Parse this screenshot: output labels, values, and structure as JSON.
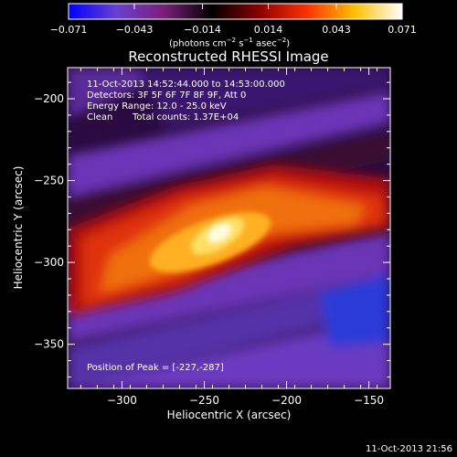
{
  "chart_data": {
    "type": "heatmap",
    "title": "Reconstructed RHESSI Image",
    "xlabel": "Heliocentric X (arcsec)",
    "ylabel": "Heliocentric Y (arcsec)",
    "xlim": [
      -333,
      -137
    ],
    "ylim": [
      -377,
      -181
    ],
    "x_ticks": [
      -300,
      -250,
      -200,
      -150
    ],
    "x_tick_labels": [
      "−300",
      "−250",
      "−200",
      "−150"
    ],
    "y_ticks": [
      -200,
      -250,
      -300,
      -350
    ],
    "y_tick_labels": [
      "−200",
      "−250",
      "−300",
      "−350"
    ],
    "peak": [
      -227,
      -287
    ],
    "colorbar": {
      "range": [
        -0.071,
        0.071
      ],
      "ticks": [
        -0.071,
        -0.043,
        -0.014,
        0.014,
        0.043,
        0.071
      ],
      "tick_labels": [
        "−0.071",
        "−0.043",
        "−0.014",
        "0.014",
        "0.043",
        "0.071"
      ],
      "label_main": "(photons cm",
      "label_sup1": "−2",
      "label_mid": " s",
      "label_sup2": "−1",
      "label_end": " asec",
      "label_sup3": "−2",
      "label_close": ")",
      "colors": [
        "#0000ff",
        "#6a3fd0",
        "#7a1f7a",
        "#000000",
        "#8a0000",
        "#ff3000",
        "#ffc000",
        "#ffffff"
      ]
    }
  },
  "annotations": {
    "time_range": "11-Oct-2013 14:52:44.000 to 14:53:00.000",
    "detectors": "Detectors: 3F 5F 6F 7F 8F 9F, Att 0",
    "energy": "Energy Range: 12.0 - 25.0 keV",
    "clean": "Clean",
    "total_counts": "Total counts: 1.37E+04",
    "peak_text": "Position of Peak = [-227,-287]"
  },
  "timestamp": "11-Oct-2013 21:56"
}
